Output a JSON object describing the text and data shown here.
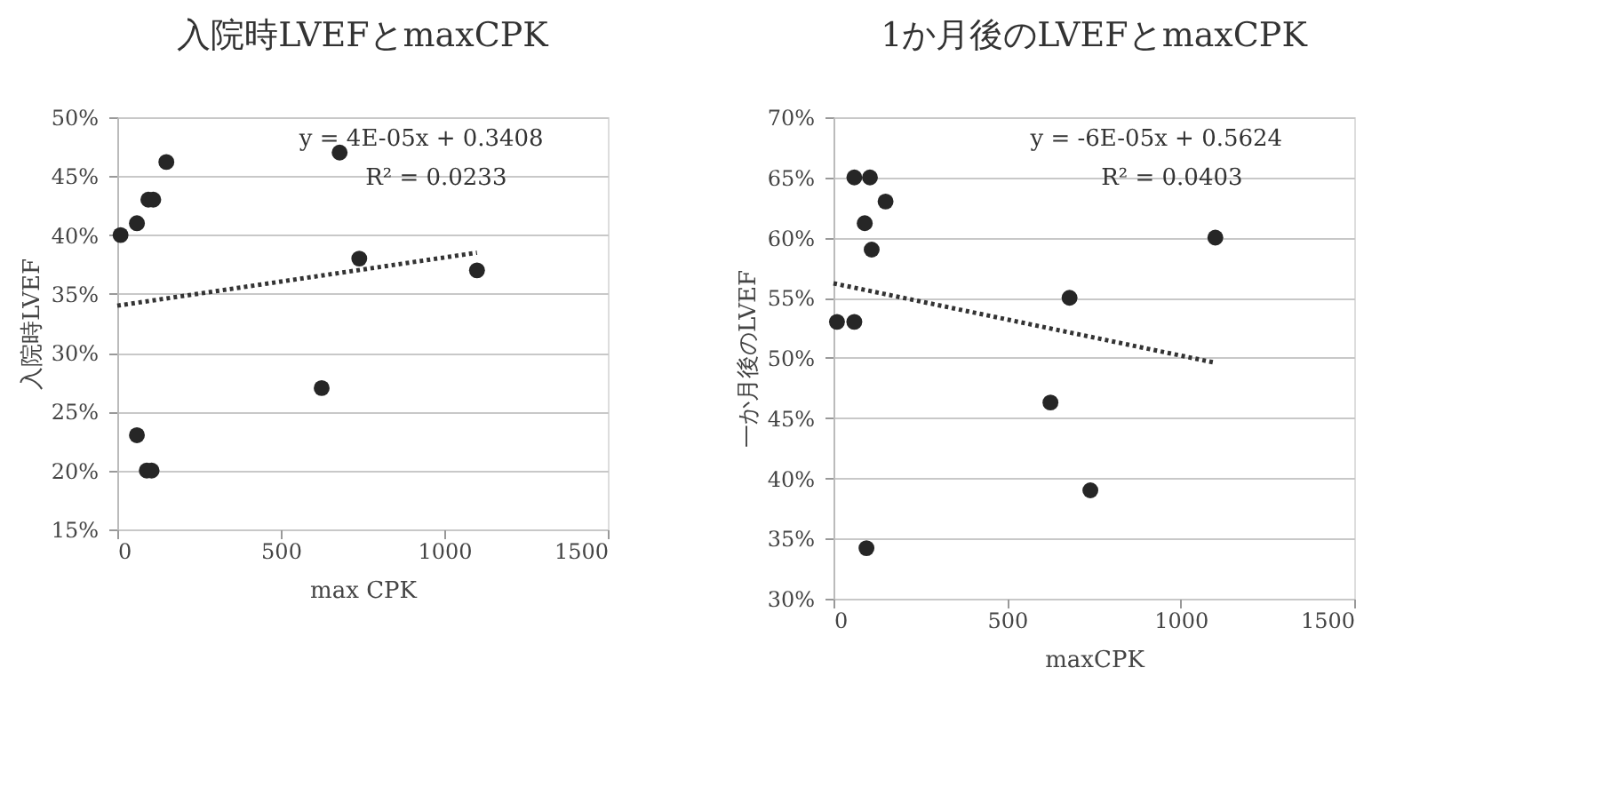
{
  "chart_data": [
    {
      "type": "scatter",
      "title": "入院時LVEFとmaxCPK",
      "xlabel": "max CPK",
      "ylabel": "入院時LVEF",
      "xlim": [
        0,
        1500
      ],
      "xticks": [
        0,
        500,
        1000,
        1500
      ],
      "ylim": [
        0.15,
        0.5
      ],
      "yticks": [
        {
          "value": 0.15,
          "label": "15%"
        },
        {
          "value": 0.2,
          "label": "20%"
        },
        {
          "value": 0.25,
          "label": "25%"
        },
        {
          "value": 0.3,
          "label": "30%"
        },
        {
          "value": 0.35,
          "label": "35%"
        },
        {
          "value": 0.4,
          "label": "40%"
        },
        {
          "value": 0.45,
          "label": "45%"
        },
        {
          "value": 0.5,
          "label": "50%"
        }
      ],
      "grid": "y",
      "annotations": [
        "y = 4E-05x + 0.3408",
        "R² = 0.0233"
      ],
      "series": [
        {
          "marker": "circle",
          "color": "#262626",
          "x": [
            10,
            60,
            95,
            110,
            150,
            60,
            90,
            105,
            625,
            680,
            740,
            1100
          ],
          "values": [
            0.4,
            0.41,
            0.43,
            0.43,
            0.462,
            0.23,
            0.2,
            0.2,
            0.27,
            0.47,
            0.38,
            0.37
          ]
        },
        {
          "type": "line",
          "line_style": "dotted",
          "color": "#333333",
          "x": [
            0,
            1100
          ],
          "values": [
            0.34,
            0.385
          ]
        }
      ]
    },
    {
      "type": "scatter",
      "title": "1か月後のLVEFとmaxCPK",
      "xlabel": "maxCPK",
      "ylabel": "一か月後のLVEF",
      "xlim": [
        0,
        1500
      ],
      "xticks": [
        0,
        500,
        1000,
        1500
      ],
      "ylim": [
        0.3,
        0.7
      ],
      "yticks": [
        {
          "value": 0.3,
          "label": "30%"
        },
        {
          "value": 0.35,
          "label": "35%"
        },
        {
          "value": 0.4,
          "label": "40%"
        },
        {
          "value": 0.45,
          "label": "45%"
        },
        {
          "value": 0.5,
          "label": "50%"
        },
        {
          "value": 0.55,
          "label": "55%"
        },
        {
          "value": 0.6,
          "label": "60%"
        },
        {
          "value": 0.65,
          "label": "65%"
        },
        {
          "value": 0.7,
          "label": "70%"
        }
      ],
      "grid": "y",
      "annotations": [
        "y = -6E-05x + 0.5624",
        "R² = 0.0403"
      ],
      "series": [
        {
          "marker": "circle",
          "color": "#262626",
          "x": [
            10,
            60,
            60,
            105,
            150,
            90,
            110,
            95,
            625,
            680,
            740,
            1100
          ],
          "values": [
            0.53,
            0.53,
            0.65,
            0.65,
            0.63,
            0.612,
            0.59,
            0.342,
            0.463,
            0.55,
            0.39,
            0.6
          ]
        },
        {
          "type": "line",
          "line_style": "dotted",
          "color": "#333333",
          "x": [
            0,
            1100
          ],
          "values": [
            0.562,
            0.496
          ]
        }
      ]
    }
  ]
}
